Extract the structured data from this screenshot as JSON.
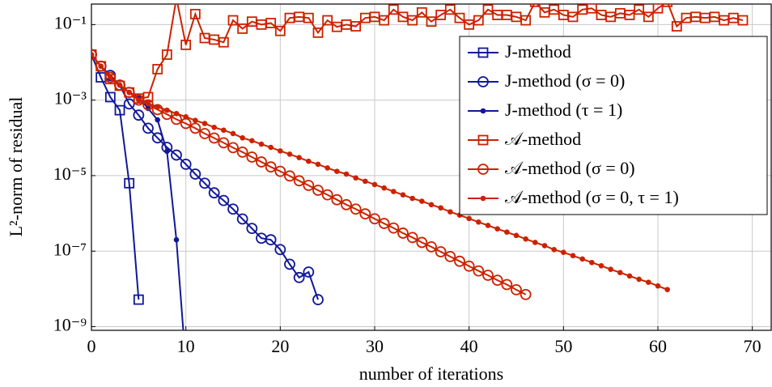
{
  "chart_data": {
    "type": "line",
    "xlabel": "number of iterations",
    "ylabel": "L²-norm of residual",
    "ylog": true,
    "grid": true,
    "legend_position": "upper right",
    "xlim": [
      0,
      72
    ],
    "ylim": [
      8e-10,
      0.35
    ],
    "xticks": [
      0,
      10,
      20,
      30,
      40,
      50,
      60,
      70
    ],
    "yticks": [
      {
        "value": 0.1,
        "label": "10⁻¹"
      },
      {
        "value": 0.001,
        "label": "10⁻³"
      },
      {
        "value": 1e-05,
        "label": "10⁻⁵"
      },
      {
        "value": 1e-07,
        "label": "10⁻⁷"
      },
      {
        "value": 1e-09,
        "label": "10⁻⁹"
      }
    ],
    "x": [
      0,
      1,
      2,
      3,
      4,
      5,
      6,
      7,
      8,
      9,
      10,
      11,
      12,
      13,
      14,
      15,
      16,
      17,
      18,
      19,
      20,
      21,
      22,
      23,
      24,
      25,
      26,
      27,
      28,
      29,
      30,
      31,
      32,
      33,
      34,
      35,
      36,
      37,
      38,
      39,
      40,
      41,
      42,
      43,
      44,
      45,
      46,
      47,
      48,
      49,
      50,
      51,
      52,
      53,
      54,
      55,
      56,
      57,
      58,
      59,
      60,
      61,
      62,
      63,
      64,
      65,
      66,
      67,
      68,
      69
    ],
    "series": [
      {
        "name": "J-method",
        "color": "#10189a",
        "marker": "square",
        "values": [
          0.016,
          0.004,
          0.0012,
          0.00054,
          6.3e-06,
          5.2e-09,
          null,
          null,
          null,
          null,
          null,
          null,
          null,
          null,
          null,
          null,
          null,
          null,
          null,
          null,
          null,
          null,
          null,
          null,
          null,
          null,
          null,
          null,
          null,
          null,
          null,
          null,
          null,
          null,
          null,
          null,
          null,
          null,
          null,
          null,
          null,
          null,
          null,
          null,
          null,
          null,
          null,
          null,
          null,
          null,
          null,
          null,
          null,
          null,
          null,
          null,
          null,
          null,
          null,
          null,
          null,
          null,
          null,
          null,
          null,
          null,
          null,
          null,
          null,
          null
        ]
      },
      {
        "name": "J-method (σ = 0)",
        "color": "#10189a",
        "marker": "circle",
        "values": [
          0.016,
          0.0079,
          0.0045,
          0.0025,
          0.00079,
          0.0004,
          0.00018,
          0.0001,
          5.6e-05,
          3.5e-05,
          2e-05,
          1.1e-05,
          6.3e-06,
          3.5e-06,
          2.2e-06,
          1.3e-06,
          7.1e-07,
          4e-07,
          2.2e-07,
          2e-07,
          1.1e-07,
          4.5e-08,
          2e-08,
          2.8e-08,
          5.2e-09,
          null,
          null,
          null,
          null,
          null,
          null,
          null,
          null,
          null,
          null,
          null,
          null,
          null,
          null,
          null,
          null,
          null,
          null,
          null,
          null,
          null,
          null,
          null,
          null,
          null,
          null,
          null,
          null,
          null,
          null,
          null,
          null,
          null,
          null,
          null,
          null,
          null,
          null,
          null,
          null,
          null,
          null,
          null,
          null,
          null
        ]
      },
      {
        "name": "J-method (τ = 1)",
        "color": "#10189a",
        "marker": "dot",
        "values": [
          0.016,
          0.0079,
          0.004,
          0.0025,
          0.0016,
          0.0012,
          0.0006,
          0.0003,
          4.4e-05,
          2e-07,
          1e-10,
          null,
          null,
          null,
          null,
          null,
          null,
          null,
          null,
          null,
          null,
          null,
          null,
          null,
          null,
          null,
          null,
          null,
          null,
          null,
          null,
          null,
          null,
          null,
          null,
          null,
          null,
          null,
          null,
          null,
          null,
          null,
          null,
          null,
          null,
          null,
          null,
          null,
          null,
          null,
          null,
          null,
          null,
          null,
          null,
          null,
          null,
          null,
          null,
          null,
          null,
          null,
          null,
          null,
          null,
          null,
          null,
          null,
          null,
          null
        ]
      },
      {
        "name": "𝒜-method",
        "color": "#cc2200",
        "marker": "square",
        "values": [
          0.016,
          0.0079,
          0.0036,
          0.0024,
          0.0016,
          0.0011,
          0.0012,
          0.0066,
          0.016,
          0.5,
          0.029,
          0.19,
          0.044,
          0.04,
          0.034,
          0.13,
          0.078,
          0.12,
          0.1,
          0.11,
          0.068,
          0.15,
          0.16,
          0.15,
          0.061,
          0.13,
          0.087,
          0.1,
          0.09,
          0.15,
          0.16,
          0.13,
          0.25,
          0.16,
          0.13,
          0.21,
          0.12,
          0.18,
          0.25,
          0.15,
          0.1,
          0.13,
          0.25,
          0.18,
          0.18,
          0.16,
          0.13,
          0.4,
          0.21,
          0.25,
          0.18,
          0.16,
          0.25,
          0.27,
          0.18,
          0.16,
          0.2,
          0.18,
          0.25,
          0.16,
          0.27,
          0.4,
          0.09,
          0.15,
          0.16,
          0.15,
          0.16,
          0.13,
          0.15,
          0.13
        ]
      },
      {
        "name": "𝒜-method (σ = 0)",
        "color": "#cc2200",
        "marker": "circle",
        "values": [
          0.016,
          0.0079,
          0.004,
          0.0025,
          0.0016,
          0.001,
          0.00075,
          0.00056,
          0.00042,
          0.00031,
          0.00024,
          0.00018,
          0.00013,
          9.9e-05,
          7.4e-05,
          5.5e-05,
          4.2e-05,
          3.1e-05,
          2.3e-05,
          1.7e-05,
          1.3e-05,
          9.8e-06,
          7.3e-06,
          5.5e-06,
          4.1e-06,
          3.1e-06,
          2.3e-06,
          1.7e-06,
          1.3e-06,
          9.7e-07,
          7.2e-07,
          5.4e-07,
          4.1e-07,
          3e-07,
          2.3e-07,
          1.7e-07,
          1.3e-07,
          9.6e-08,
          7.2e-08,
          5.4e-08,
          4e-08,
          3e-08,
          2.3e-08,
          1.7e-08,
          1.3e-08,
          9.5e-09,
          7.1e-09,
          null,
          null,
          null,
          null,
          null,
          null,
          null,
          null,
          null,
          null,
          null,
          null,
          null,
          null,
          null,
          null,
          null,
          null,
          null,
          null,
          null,
          null,
          null
        ]
      },
      {
        "name": "𝒜-method (σ = 0, τ = 1)",
        "color": "#cc2200",
        "marker": "dot",
        "values": [
          0.016,
          0.0079,
          0.004,
          0.0025,
          0.0016,
          0.001,
          0.00081,
          0.00066,
          0.00054,
          0.00044,
          0.00036,
          0.00029,
          0.00024,
          0.00019,
          0.00016,
          0.00013,
          0.0001,
          8.4e-05,
          6.8e-05,
          5.6e-05,
          4.5e-05,
          3.7e-05,
          3e-05,
          2.4e-05,
          2e-05,
          1.6e-05,
          1.3e-05,
          1.1e-05,
          8.7e-06,
          7.1e-06,
          5.8e-06,
          4.7e-06,
          3.8e-06,
          3.1e-06,
          2.5e-06,
          2.1e-06,
          1.7e-06,
          1.4e-06,
          1.1e-06,
          9e-07,
          7.3e-07,
          5.9e-07,
          4.8e-07,
          3.9e-07,
          3.2e-07,
          2.6e-07,
          2.1e-07,
          1.7e-07,
          1.4e-07,
          1.1e-07,
          9.3e-08,
          7.6e-08,
          6.2e-08,
          5e-08,
          4.1e-08,
          3.3e-08,
          2.7e-08,
          2.2e-08,
          1.8e-08,
          1.5e-08,
          1.2e-08,
          9.6e-09,
          null,
          null,
          null,
          null,
          null,
          null,
          null,
          null
        ]
      }
    ]
  }
}
